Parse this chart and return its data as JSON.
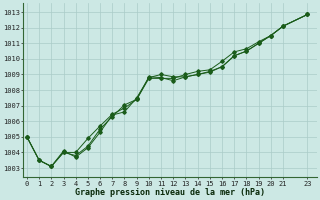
{
  "background_color": "#cce8e4",
  "grid_color": "#aaccc8",
  "line_color": "#1a5c1a",
  "x_label": "Graphe pression niveau de la mer (hPa)",
  "x_ticks": [
    0,
    1,
    2,
    3,
    4,
    5,
    6,
    7,
    8,
    9,
    10,
    11,
    12,
    13,
    14,
    15,
    16,
    17,
    18,
    19,
    20,
    21,
    23
  ],
  "xlim": [
    -0.3,
    23.8
  ],
  "ylim": [
    1002.4,
    1013.6
  ],
  "yticks": [
    1003,
    1004,
    1005,
    1006,
    1007,
    1008,
    1009,
    1010,
    1011,
    1012,
    1013
  ],
  "series1": {
    "x": [
      0,
      1,
      2,
      3,
      4,
      5,
      6,
      7,
      8,
      9,
      10,
      11,
      12,
      13,
      14,
      15,
      16,
      17,
      18,
      19,
      20,
      21,
      23
    ],
    "y": [
      1005.0,
      1003.5,
      1003.1,
      1004.1,
      1003.7,
      1004.3,
      1005.3,
      1006.4,
      1006.6,
      1007.5,
      1008.8,
      1009.0,
      1008.85,
      1008.85,
      1009.0,
      1009.2,
      1009.5,
      1010.2,
      1010.5,
      1011.0,
      1011.5,
      1012.1,
      1012.85
    ]
  },
  "series2": {
    "x": [
      0,
      1,
      2,
      3,
      4,
      5,
      6,
      7,
      8,
      9,
      10,
      11,
      12,
      13,
      14,
      15,
      16,
      17,
      18,
      19,
      20,
      21,
      23
    ],
    "y": [
      1005.0,
      1003.5,
      1003.1,
      1004.0,
      1003.8,
      1004.4,
      1005.5,
      1006.3,
      1007.05,
      1007.4,
      1008.85,
      1008.8,
      1008.6,
      1008.85,
      1009.0,
      1009.15,
      1009.5,
      1010.2,
      1010.5,
      1011.0,
      1011.5,
      1012.1,
      1012.85
    ]
  },
  "series3": {
    "x": [
      0,
      1,
      2,
      3,
      4,
      5,
      6,
      7,
      8,
      9,
      10,
      11,
      12,
      13,
      14,
      15,
      16,
      17,
      18,
      19,
      20,
      21,
      23
    ],
    "y": [
      1005.0,
      1003.5,
      1003.1,
      1004.0,
      1004.0,
      1004.9,
      1005.7,
      1006.45,
      1006.85,
      1007.4,
      1008.75,
      1008.75,
      1008.75,
      1009.0,
      1009.2,
      1009.3,
      1009.85,
      1010.45,
      1010.65,
      1011.1,
      1011.5,
      1012.1,
      1012.85
    ]
  },
  "tick_fontsize": 5.0,
  "xlabel_fontsize": 6.0
}
